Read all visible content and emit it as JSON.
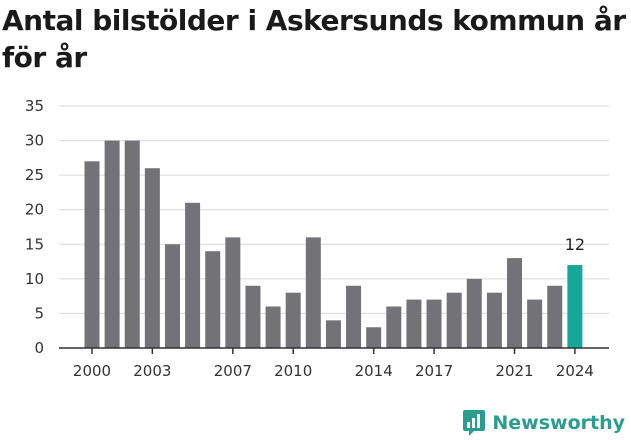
{
  "chart_data": {
    "type": "bar",
    "title": "Antal bilstölder i Askersunds kommun år för år",
    "xlabel": "",
    "ylabel": "",
    "categories": [
      "2000",
      "2001",
      "2002",
      "2003",
      "2004",
      "2005",
      "2006",
      "2007",
      "2008",
      "2009",
      "2010",
      "2011",
      "2012",
      "2013",
      "2014",
      "2015",
      "2016",
      "2017",
      "2018",
      "2019",
      "2020",
      "2021",
      "2022",
      "2023",
      "2024"
    ],
    "values": [
      27,
      30,
      30,
      26,
      15,
      21,
      14,
      16,
      9,
      6,
      8,
      16,
      4,
      9,
      3,
      6,
      7,
      7,
      8,
      10,
      8,
      13,
      7,
      9,
      12
    ],
    "x_tick_labels": [
      "2000",
      "2003",
      "2007",
      "2010",
      "2014",
      "2017",
      "2021",
      "2024"
    ],
    "y_ticks": [
      0,
      5,
      10,
      15,
      20,
      25,
      30,
      35
    ],
    "ylim": [
      0,
      35
    ],
    "grid": true,
    "legend": "none",
    "highlight_category": "2024",
    "highlight_label": "12",
    "colors": {
      "bar": "#737276",
      "highlight": "#17a79a",
      "grid": "#d9d9d9",
      "axis": "#333333"
    }
  },
  "brand": {
    "name": "Newsworthy",
    "icon": "newsworthy-logo-icon",
    "color": "#2a9d8f"
  }
}
